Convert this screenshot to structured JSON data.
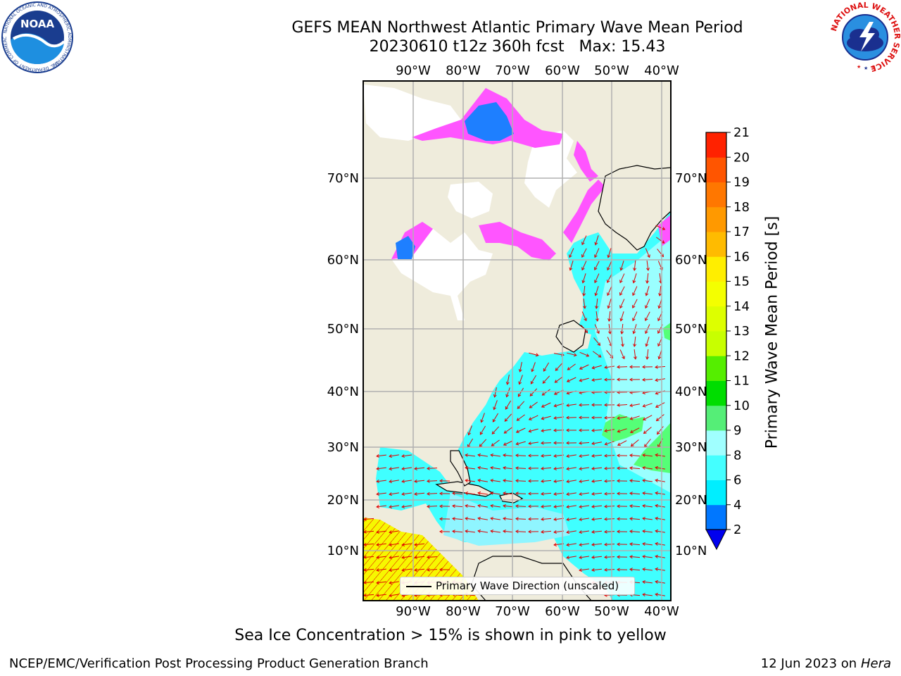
{
  "header": {
    "title_line1": "GEFS MEAN Northwest Atlantic Primary Wave Mean Period",
    "title_line2": "20230610 t12z 360h fcst   Max: 15.43"
  },
  "logos": {
    "left": "noaa-logo",
    "left_text": "NOAA",
    "left_ring_text": "NATIONAL OCEANIC AND ATMOSPHERIC ADMINISTRATION",
    "left_ring_text_bottom": "U.S. DEPARTMENT OF COMMERCE",
    "right": "nws-logo",
    "right_ring_text": "NATIONAL WEATHER SERVICE"
  },
  "map": {
    "lon_labels": [
      "90°W",
      "80°W",
      "70°W",
      "60°W",
      "50°W",
      "40°W"
    ],
    "lat_labels": [
      "70°N",
      "60°N",
      "50°N",
      "40°N",
      "30°N",
      "20°N",
      "10°N"
    ],
    "legend_label": "Primary Wave Direction (unscaled)",
    "colors": {
      "land": "#efecdc",
      "ocean_low": "#00f0ff",
      "ocean_mid": "#40ffff",
      "ocean_pale": "#9affff",
      "swell_green": "#55ff77",
      "ice_pink": "#ff55ff",
      "ice_blue": "#1e7fff",
      "tropic_yellow": "#f7f700",
      "arrow": "#e00000",
      "grid": "#b0b0b0"
    }
  },
  "colorbar": {
    "label": "Primary Wave Mean Period [s]",
    "ticks": [
      "21",
      "20",
      "19",
      "18",
      "17",
      "16",
      "15",
      "14",
      "13",
      "12",
      "11",
      "10",
      "9",
      "8",
      "6",
      "4",
      "2"
    ],
    "bins": [
      {
        "from": 2,
        "to": 4,
        "color": "#0077ff"
      },
      {
        "from": 4,
        "to": 6,
        "color": "#00eeff"
      },
      {
        "from": 6,
        "to": 8,
        "color": "#44ffff"
      },
      {
        "from": 8,
        "to": 9,
        "color": "#a0ffff"
      },
      {
        "from": 9,
        "to": 10,
        "color": "#55ee77"
      },
      {
        "from": 10,
        "to": 11,
        "color": "#00dd00"
      },
      {
        "from": 11,
        "to": 12,
        "color": "#55ee00"
      },
      {
        "from": 12,
        "to": 13,
        "color": "#c8ff00"
      },
      {
        "from": 13,
        "to": 14,
        "color": "#ddff00"
      },
      {
        "from": 14,
        "to": 15,
        "color": "#f4ff00"
      },
      {
        "from": 15,
        "to": 16,
        "color": "#ffee00"
      },
      {
        "from": 16,
        "to": 17,
        "color": "#ffbb00"
      },
      {
        "from": 17,
        "to": 18,
        "color": "#ff9900"
      },
      {
        "from": 18,
        "to": 19,
        "color": "#ff7700"
      },
      {
        "from": 19,
        "to": 20,
        "color": "#ff5500"
      },
      {
        "from": 20,
        "to": 21,
        "color": "#ff2200"
      }
    ],
    "under_color": "#0000ee"
  },
  "footer": {
    "note": "Sea Ice Concentration > 15% is shown in pink to yellow",
    "left": "NCEP/EMC/Verification Post Processing Product Generation Branch",
    "right_date": "12 Jun 2023 on",
    "right_machine": "Hera"
  }
}
